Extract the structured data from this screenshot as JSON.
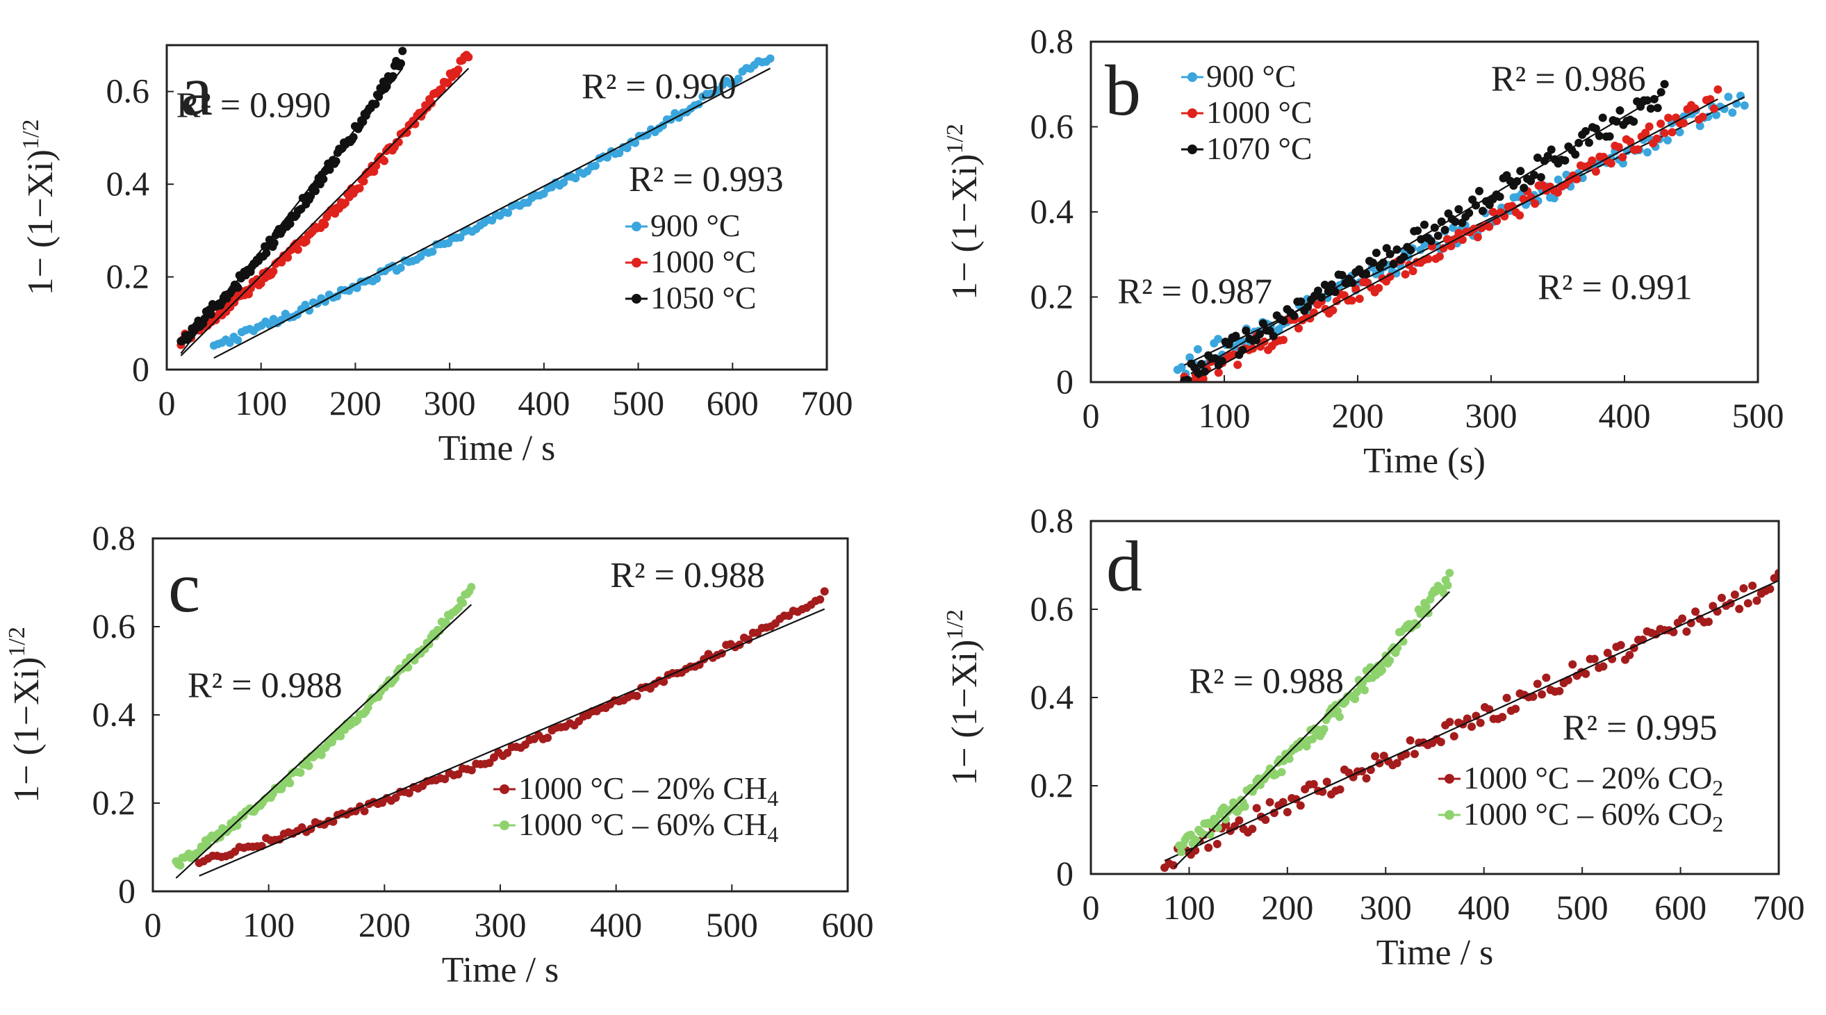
{
  "chart_data": [
    {
      "panel": "a",
      "type": "scatter",
      "xlabel": "Time / s",
      "ylabel": "1− (1−Xi)",
      "ylabel_sup": "1/2",
      "xlim": [
        0,
        700
      ],
      "ylim": [
        0,
        0.7
      ],
      "xticks": [
        "0",
        "100",
        "200",
        "300",
        "400",
        "500",
        "600",
        "700"
      ],
      "yticks": [
        "0",
        "0.2",
        "0.4",
        "0.6"
      ],
      "legend_position": "lower-right",
      "grid": false,
      "series": [
        {
          "name": "900 °C",
          "color": "#3aa6dd",
          "x0": 50,
          "x1": 640,
          "fit": [
            50,
            0.025,
            640,
            0.65
          ],
          "curve": 0.04,
          "noise": 0.004
        },
        {
          "name": "1000 °C",
          "color": "#e0221c",
          "x0": 15,
          "x1": 320,
          "fit": [
            15,
            0.03,
            320,
            0.65
          ],
          "curve": 0.05,
          "noise": 0.005
        },
        {
          "name": "1050 °C",
          "color": "#111111",
          "x0": 15,
          "x1": 250,
          "fit": [
            15,
            0.035,
            250,
            0.65
          ],
          "curve": 0.04,
          "noise": 0.006
        }
      ],
      "annotations": [
        {
          "text": "R² = 0.990",
          "x": 10,
          "y": 0.545
        },
        {
          "text": "R² = 0.990",
          "x": 440,
          "y": 0.585
        },
        {
          "text": "R² = 0.993",
          "x": 490,
          "y": 0.385
        }
      ]
    },
    {
      "panel": "b",
      "type": "scatter",
      "xlabel": "Time (s)",
      "ylabel": "1− (1−Xi)",
      "ylabel_sup": "1/2",
      "xlim": [
        0,
        500
      ],
      "ylim": [
        0,
        0.8
      ],
      "xticks": [
        "0",
        "100",
        "200",
        "300",
        "400",
        "500"
      ],
      "yticks": [
        "0",
        "0.2",
        "0.4",
        "0.6",
        "0.8"
      ],
      "legend_position": "upper-left",
      "grid": false,
      "series": [
        {
          "name": "900 °C",
          "color": "#3aa6dd",
          "x0": 65,
          "x1": 490,
          "fit": [
            70,
            0.04,
            490,
            0.67
          ],
          "curve": 0.0,
          "noise": 0.012
        },
        {
          "name": "1000 °C",
          "color": "#e0221c",
          "x0": 70,
          "x1": 470,
          "fit": [
            80,
            0.01,
            470,
            0.665
          ],
          "curve": 0.0,
          "noise": 0.012
        },
        {
          "name": "1070 °C",
          "color": "#111111",
          "x0": 70,
          "x1": 430,
          "fit": [
            75,
            0.02,
            430,
            0.68
          ],
          "curve": 0.0,
          "noise": 0.014
        }
      ],
      "annotations": [
        {
          "text": "R² = 0.986",
          "x": 300,
          "y": 0.685
        },
        {
          "text": "R² = 0.987",
          "x": 20,
          "y": 0.185
        },
        {
          "text": "R² = 0.991",
          "x": 335,
          "y": 0.195
        }
      ]
    },
    {
      "panel": "c",
      "type": "scatter",
      "xlabel": "Time / s",
      "ylabel": "1− (1−Xi)",
      "ylabel_sup": "1/2",
      "xlim": [
        0,
        600
      ],
      "ylim": [
        0,
        0.8
      ],
      "xticks": [
        "0",
        "100",
        "200",
        "300",
        "400",
        "500",
        "600"
      ],
      "yticks": [
        "0",
        "0.2",
        "0.4",
        "0.6",
        "0.8"
      ],
      "legend_position": "lower-right",
      "grid": false,
      "series": [
        {
          "name": "1000 °C – 20% CH",
          "sub": "4",
          "color": "#a51c1c",
          "x0": 40,
          "x1": 580,
          "fit": [
            40,
            0.035,
            580,
            0.64
          ],
          "curve": 0.05,
          "noise": 0.004
        },
        {
          "name": "1000 °C – 60% CH",
          "sub": "4",
          "color": "#8ed26e",
          "x0": 20,
          "x1": 275,
          "fit": [
            20,
            0.03,
            275,
            0.65
          ],
          "curve": 0.05,
          "noise": 0.005
        }
      ],
      "annotations": [
        {
          "text": "R² = 0.988",
          "x": 395,
          "y": 0.69
        },
        {
          "text": "R² = 0.988",
          "x": 30,
          "y": 0.44
        }
      ]
    },
    {
      "panel": "d",
      "type": "scatter",
      "xlabel": "Time / s",
      "ylabel": "1− (1−Xi)",
      "ylabel_sup": "1/2",
      "xlim": [
        0,
        700
      ],
      "ylim": [
        0,
        0.8
      ],
      "xticks": [
        "0",
        "100",
        "200",
        "300",
        "400",
        "500",
        "600",
        "700"
      ],
      "yticks": [
        "0",
        "0.2",
        "0.4",
        "0.6",
        "0.8"
      ],
      "legend_position": "lower-right",
      "grid": false,
      "series": [
        {
          "name": "1000 °C – 20% CO",
          "sub": "2",
          "color": "#a51c1c",
          "x0": 75,
          "x1": 700,
          "fit": [
            75,
            0.03,
            700,
            0.665
          ],
          "curve": 0.0,
          "noise": 0.012
        },
        {
          "name": "1000 °C – 60% CO",
          "sub": "2",
          "color": "#8ed26e",
          "x0": 90,
          "x1": 365,
          "fit": [
            85,
            0.015,
            365,
            0.64
          ],
          "curve": 0.05,
          "noise": 0.01
        }
      ],
      "annotations": [
        {
          "text": "R² = 0.988",
          "x": 100,
          "y": 0.41
        },
        {
          "text": "R² = 0.995",
          "x": 480,
          "y": 0.305
        }
      ]
    }
  ]
}
